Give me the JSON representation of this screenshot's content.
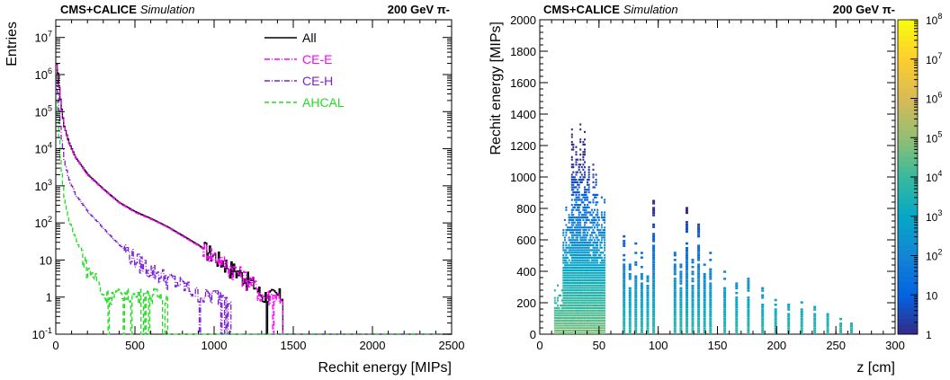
{
  "chart_data": [
    {
      "type": "line",
      "header_left": {
        "bold": "CMS+CALICE",
        "italic": "Simulation"
      },
      "header_right": "200 GeV π-",
      "xlabel": "Rechit energy [MIPs]",
      "ylabel": "Entries",
      "x_ticks": [
        "0",
        "500",
        "1000",
        "1500",
        "2000",
        "2500"
      ],
      "y_ticks": [
        {
          "base": "10",
          "exp": "-1"
        },
        {
          "base": "1",
          "exp": ""
        },
        {
          "base": "10",
          "exp": ""
        },
        {
          "base": "10",
          "exp": "2"
        },
        {
          "base": "10",
          "exp": "3"
        },
        {
          "base": "10",
          "exp": "4"
        },
        {
          "base": "10",
          "exp": "5"
        },
        {
          "base": "10",
          "exp": "6"
        },
        {
          "base": "10",
          "exp": "7"
        }
      ],
      "xlim": [
        0,
        2500
      ],
      "ylim": [
        0.1,
        30000000
      ],
      "log_y": true,
      "legend_position": "top-right",
      "series": [
        {
          "name": "All",
          "color": "#000000",
          "dash": "solid",
          "points": [
            [
              5,
              2000000
            ],
            [
              15,
              600000
            ],
            [
              30,
              150000
            ],
            [
              50,
              40000
            ],
            [
              80,
              15000
            ],
            [
              120,
              6000
            ],
            [
              200,
              2000
            ],
            [
              300,
              800
            ],
            [
              400,
              350
            ],
            [
              500,
              200
            ],
            [
              600,
              130
            ],
            [
              700,
              80
            ],
            [
              800,
              45
            ],
            [
              900,
              25
            ],
            [
              1000,
              12
            ],
            [
              1100,
              6
            ],
            [
              1200,
              3
            ],
            [
              1250,
              2
            ],
            [
              1300,
              1
            ],
            [
              1430,
              1
            ]
          ]
        },
        {
          "name": "CE-E",
          "color": "#ff00ff",
          "dash": "dashdot",
          "points": [
            [
              5,
              1800000
            ],
            [
              15,
              550000
            ],
            [
              30,
              140000
            ],
            [
              50,
              38000
            ],
            [
              80,
              14000
            ],
            [
              120,
              5800
            ],
            [
              200,
              1900
            ],
            [
              300,
              780
            ],
            [
              400,
              340
            ],
            [
              500,
              190
            ],
            [
              600,
              125
            ],
            [
              700,
              78
            ],
            [
              800,
              43
            ],
            [
              900,
              24
            ],
            [
              1000,
              12
            ],
            [
              1100,
              6
            ],
            [
              1200,
              3
            ],
            [
              1250,
              2
            ],
            [
              1300,
              1
            ],
            [
              1430,
              1
            ]
          ]
        },
        {
          "name": "CE-H",
          "color": "#7b1fd9",
          "dash": "dashdot",
          "points": [
            [
              5,
              700000
            ],
            [
              15,
              150000
            ],
            [
              30,
              25000
            ],
            [
              50,
              5000
            ],
            [
              80,
              1500
            ],
            [
              120,
              600
            ],
            [
              200,
              200
            ],
            [
              300,
              70
            ],
            [
              400,
              25
            ],
            [
              500,
              10
            ],
            [
              600,
              5
            ],
            [
              700,
              3
            ],
            [
              800,
              2
            ],
            [
              900,
              1
            ],
            [
              1000,
              1
            ],
            [
              1100,
              1
            ]
          ]
        },
        {
          "name": "AHCAL",
          "color": "#22dd22",
          "dash": "dashed",
          "points": [
            [
              5,
              200000
            ],
            [
              15,
              30000
            ],
            [
              30,
              3000
            ],
            [
              50,
              500
            ],
            [
              80,
              120
            ],
            [
              120,
              40
            ],
            [
              160,
              15
            ],
            [
              200,
              5
            ],
            [
              250,
              3
            ],
            [
              300,
              1
            ],
            [
              400,
              1
            ],
            [
              500,
              1
            ],
            [
              700,
              1
            ]
          ]
        }
      ]
    },
    {
      "type": "heatmap",
      "header_left": {
        "bold": "CMS+CALICE",
        "italic": "Simulation"
      },
      "header_right": "200 GeV π-",
      "xlabel": "z [cm]",
      "ylabel": "Rechit energy [MIPs]",
      "xlim": [
        0,
        300
      ],
      "ylim": [
        0,
        2000
      ],
      "x_ticks": [
        "0",
        "50",
        "100",
        "150",
        "200",
        "250",
        "300"
      ],
      "y_ticks": [
        "0",
        "200",
        "400",
        "600",
        "800",
        "1000",
        "1200",
        "1400",
        "1600",
        "1800",
        "2000"
      ],
      "colorbar": {
        "log": true,
        "range": [
          1,
          100000000
        ],
        "ticks": [
          {
            "base": "1",
            "exp": ""
          },
          {
            "base": "10",
            "exp": ""
          },
          {
            "base": "10",
            "exp": "2"
          },
          {
            "base": "10",
            "exp": "3"
          },
          {
            "base": "10",
            "exp": "4"
          },
          {
            "base": "10",
            "exp": "5"
          },
          {
            "base": "10",
            "exp": "6"
          },
          {
            "base": "10",
            "exp": "7"
          },
          {
            "base": "10",
            "exp": "8"
          }
        ],
        "palette": "kBird"
      },
      "ce_e_region": {
        "z_start": 12,
        "z_end": 55,
        "max_energy": [
          300,
          900,
          1250,
          1250,
          1050,
          900
        ]
      },
      "ce_h_layers": [
        {
          "z": 70,
          "max": 650
        },
        {
          "z": 75,
          "max": 450
        },
        {
          "z": 80,
          "max": 600
        },
        {
          "z": 85,
          "max": 520
        },
        {
          "z": 90,
          "max": 400
        },
        {
          "z": 95,
          "max": 860
        },
        {
          "z": 113,
          "max": 550
        },
        {
          "z": 118,
          "max": 460
        },
        {
          "z": 123,
          "max": 800
        },
        {
          "z": 128,
          "max": 480
        },
        {
          "z": 133,
          "max": 700
        },
        {
          "z": 138,
          "max": 440
        },
        {
          "z": 143,
          "max": 540
        },
        {
          "z": 155,
          "max": 420
        },
        {
          "z": 165,
          "max": 320
        },
        {
          "z": 175,
          "max": 360
        },
        {
          "z": 187,
          "max": 300
        },
        {
          "z": 198,
          "max": 220
        },
        {
          "z": 209,
          "max": 200
        },
        {
          "z": 220,
          "max": 200
        },
        {
          "z": 231,
          "max": 180
        },
        {
          "z": 242,
          "max": 150
        },
        {
          "z": 253,
          "max": 120
        },
        {
          "z": 262,
          "max": 100
        }
      ]
    }
  ]
}
